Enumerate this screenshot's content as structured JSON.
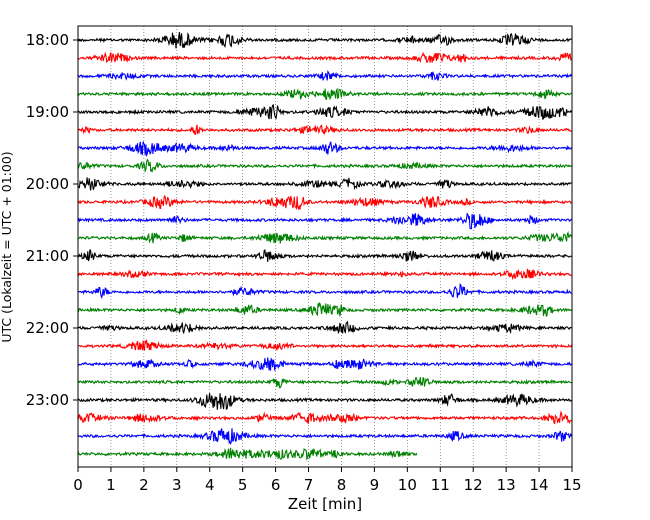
{
  "chart_data": {
    "type": "line",
    "title": "",
    "xlabel": "Zeit  [min]",
    "ylabel": "UTC (Lokalzeit = UTC + 01:00)",
    "xlim": [
      0,
      15
    ],
    "x_ticks": [
      "0",
      "1",
      "2",
      "3",
      "4",
      "5",
      "6",
      "7",
      "8",
      "9",
      "10",
      "11",
      "12",
      "13",
      "14",
      "15"
    ],
    "y_tick_labels": [
      "18:00",
      "19:00",
      "20:00",
      "21:00",
      "22:00",
      "23:00"
    ],
    "grid": "vertical dotted lines at each minute",
    "colors": [
      "#000000",
      "#ff0000",
      "#0000ff",
      "#008000"
    ],
    "traces": [
      {
        "start": "18:00",
        "color": "#000000",
        "end_min": 15
      },
      {
        "start": "18:15",
        "color": "#ff0000",
        "end_min": 15
      },
      {
        "start": "18:30",
        "color": "#0000ff",
        "end_min": 15
      },
      {
        "start": "18:45",
        "color": "#008000",
        "end_min": 15
      },
      {
        "start": "19:00",
        "color": "#000000",
        "end_min": 15
      },
      {
        "start": "19:15",
        "color": "#ff0000",
        "end_min": 15
      },
      {
        "start": "19:30",
        "color": "#0000ff",
        "end_min": 15
      },
      {
        "start": "19:45",
        "color": "#008000",
        "end_min": 15
      },
      {
        "start": "20:00",
        "color": "#000000",
        "end_min": 15
      },
      {
        "start": "20:15",
        "color": "#ff0000",
        "end_min": 15
      },
      {
        "start": "20:30",
        "color": "#0000ff",
        "end_min": 15
      },
      {
        "start": "20:45",
        "color": "#008000",
        "end_min": 15
      },
      {
        "start": "21:00",
        "color": "#000000",
        "end_min": 15
      },
      {
        "start": "21:15",
        "color": "#ff0000",
        "end_min": 15
      },
      {
        "start": "21:30",
        "color": "#0000ff",
        "end_min": 15
      },
      {
        "start": "21:45",
        "color": "#008000",
        "end_min": 15
      },
      {
        "start": "22:00",
        "color": "#000000",
        "end_min": 15
      },
      {
        "start": "22:15",
        "color": "#ff0000",
        "end_min": 15
      },
      {
        "start": "22:30",
        "color": "#0000ff",
        "end_min": 15
      },
      {
        "start": "22:45",
        "color": "#008000",
        "end_min": 15
      },
      {
        "start": "23:00",
        "color": "#000000",
        "end_min": 15
      },
      {
        "start": "23:15",
        "color": "#ff0000",
        "end_min": 15
      },
      {
        "start": "23:30",
        "color": "#0000ff",
        "end_min": 15
      },
      {
        "start": "23:45",
        "color": "#008000",
        "end_min": 10.3
      }
    ]
  }
}
